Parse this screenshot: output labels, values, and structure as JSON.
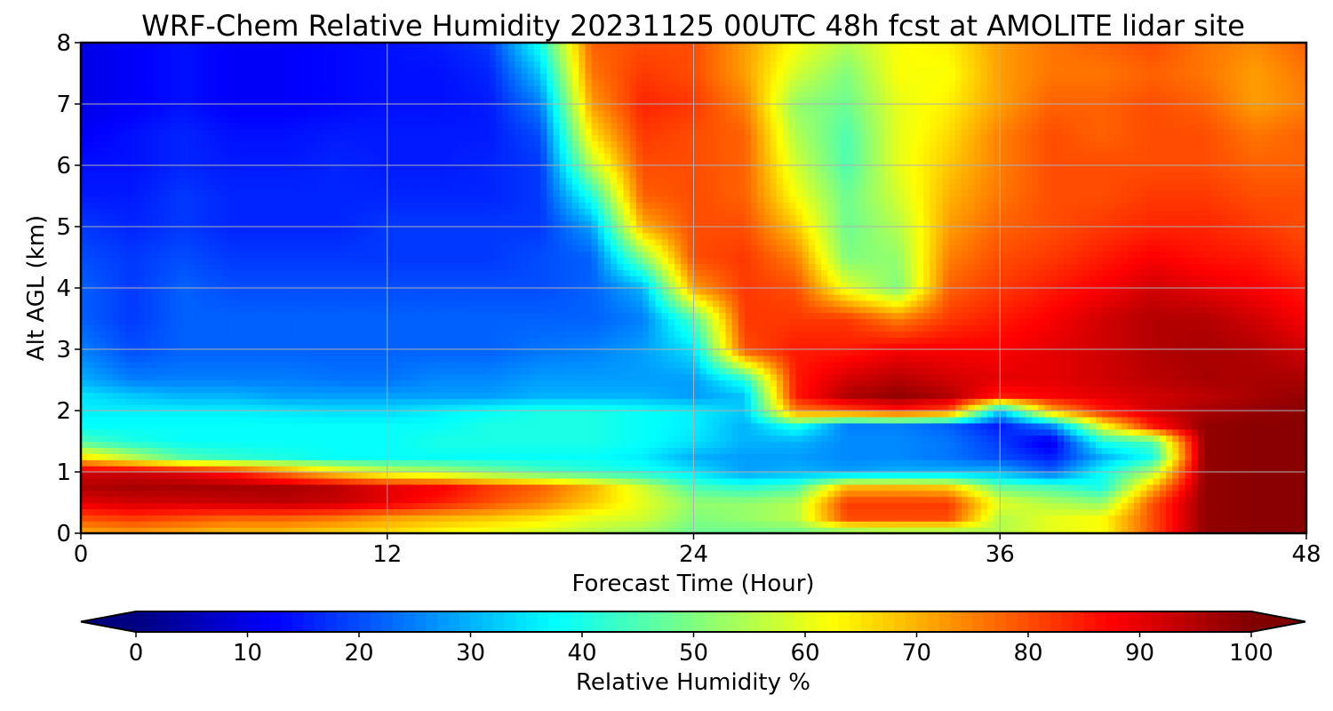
{
  "chart_data": {
    "type": "heatmap",
    "title": "WRF-Chem Relative Humidity 20231125 00UTC 48h fcst at AMOLITE lidar site",
    "xlabel": "Forecast Time (Hour)",
    "ylabel": "Alt AGL (km)",
    "xlim": [
      0,
      48
    ],
    "ylim": [
      0,
      8
    ],
    "x_ticks": [
      0,
      12,
      24,
      36,
      48
    ],
    "y_ticks": [
      0,
      1,
      2,
      3,
      4,
      5,
      6,
      7,
      8
    ],
    "grid": true,
    "x": [
      0,
      2,
      4,
      6,
      8,
      10,
      12,
      14,
      16,
      18,
      20,
      22,
      24,
      26,
      28,
      30,
      32,
      34,
      36,
      38,
      40,
      42,
      44,
      46,
      48
    ],
    "y": [
      0,
      0.25,
      0.5,
      0.75,
      1,
      1.25,
      1.5,
      1.75,
      2,
      2.25,
      2.5,
      3,
      3.5,
      4,
      4.5,
      5,
      5.5,
      6,
      6.5,
      7,
      7.5,
      8
    ],
    "z": [
      [
        70,
        72,
        70,
        68,
        68,
        66,
        65,
        62,
        60,
        58,
        55,
        52,
        48,
        48,
        48,
        48,
        50,
        50,
        55,
        60,
        62,
        80,
        98,
        99,
        99
      ],
      [
        80,
        82,
        80,
        78,
        78,
        76,
        72,
        70,
        68,
        65,
        60,
        58,
        50,
        52,
        55,
        80,
        80,
        80,
        55,
        60,
        62,
        80,
        98,
        99,
        99
      ],
      [
        90,
        92,
        92,
        93,
        94,
        93,
        90,
        85,
        80,
        75,
        68,
        60,
        52,
        52,
        55,
        82,
        82,
        82,
        60,
        55,
        52,
        80,
        98,
        99,
        99
      ],
      [
        95,
        96,
        96,
        96,
        96,
        94,
        90,
        88,
        82,
        78,
        70,
        58,
        45,
        42,
        45,
        70,
        70,
        68,
        48,
        45,
        40,
        70,
        98,
        99,
        99
      ],
      [
        92,
        92,
        90,
        85,
        75,
        65,
        58,
        55,
        50,
        45,
        42,
        40,
        35,
        28,
        30,
        28,
        30,
        30,
        30,
        22,
        38,
        55,
        98,
        99,
        99
      ],
      [
        65,
        55,
        45,
        42,
        40,
        38,
        38,
        38,
        38,
        38,
        38,
        36,
        30,
        28,
        28,
        26,
        26,
        24,
        20,
        15,
        30,
        40,
        98,
        99,
        99
      ],
      [
        45,
        40,
        38,
        38,
        38,
        38,
        38,
        40,
        40,
        40,
        40,
        38,
        35,
        30,
        30,
        26,
        26,
        24,
        18,
        10,
        40,
        45,
        98,
        99,
        99
      ],
      [
        38,
        38,
        38,
        38,
        38,
        38,
        38,
        38,
        40,
        40,
        40,
        38,
        36,
        30,
        40,
        25,
        25,
        22,
        15,
        25,
        60,
        85,
        98,
        99,
        99
      ],
      [
        36,
        36,
        36,
        36,
        35,
        34,
        34,
        36,
        38,
        40,
        40,
        38,
        36,
        32,
        75,
        80,
        85,
        80,
        32,
        70,
        85,
        92,
        96,
        98,
        99
      ],
      [
        35,
        32,
        30,
        30,
        28,
        28,
        28,
        28,
        28,
        30,
        30,
        30,
        28,
        32,
        85,
        95,
        98,
        95,
        85,
        88,
        90,
        92,
        94,
        96,
        98
      ],
      [
        30,
        25,
        25,
        25,
        25,
        24,
        24,
        26,
        26,
        28,
        28,
        28,
        28,
        40,
        85,
        92,
        95,
        92,
        90,
        90,
        92,
        94,
        96,
        96,
        96
      ],
      [
        25,
        20,
        22,
        22,
        22,
        22,
        22,
        22,
        22,
        24,
        25,
        28,
        35,
        80,
        85,
        85,
        88,
        88,
        88,
        90,
        92,
        95,
        96,
        95,
        92
      ],
      [
        22,
        18,
        22,
        22,
        22,
        22,
        22,
        22,
        22,
        22,
        22,
        25,
        45,
        82,
        82,
        82,
        75,
        82,
        85,
        88,
        92,
        95,
        95,
        92,
        88
      ],
      [
        22,
        18,
        22,
        20,
        20,
        20,
        20,
        20,
        20,
        20,
        22,
        30,
        72,
        82,
        80,
        60,
        50,
        78,
        82,
        85,
        88,
        92,
        90,
        88,
        85
      ],
      [
        20,
        18,
        20,
        18,
        18,
        18,
        18,
        18,
        18,
        20,
        22,
        50,
        80,
        82,
        75,
        50,
        52,
        75,
        80,
        82,
        85,
        88,
        86,
        85,
        82
      ],
      [
        18,
        16,
        18,
        16,
        16,
        16,
        18,
        18,
        18,
        18,
        28,
        70,
        80,
        80,
        68,
        48,
        55,
        72,
        78,
        80,
        82,
        84,
        84,
        82,
        80
      ],
      [
        15,
        15,
        18,
        16,
        16,
        16,
        16,
        16,
        16,
        18,
        40,
        78,
        80,
        78,
        62,
        48,
        58,
        70,
        76,
        80,
        80,
        82,
        82,
        80,
        80
      ],
      [
        14,
        14,
        16,
        15,
        15,
        16,
        15,
        15,
        16,
        18,
        55,
        80,
        80,
        78,
        58,
        45,
        60,
        68,
        75,
        80,
        80,
        80,
        80,
        78,
        78
      ],
      [
        12,
        14,
        16,
        14,
        14,
        15,
        15,
        15,
        15,
        20,
        65,
        82,
        80,
        78,
        55,
        45,
        60,
        66,
        75,
        80,
        78,
        80,
        80,
        76,
        78
      ],
      [
        10,
        12,
        14,
        12,
        12,
        13,
        14,
        14,
        15,
        25,
        72,
        84,
        82,
        75,
        52,
        48,
        60,
        64,
        72,
        78,
        78,
        80,
        78,
        72,
        75
      ],
      [
        10,
        12,
        14,
        12,
        12,
        13,
        14,
        14,
        16,
        32,
        76,
        82,
        80,
        72,
        58,
        50,
        62,
        62,
        72,
        76,
        76,
        78,
        76,
        72,
        76
      ],
      [
        10,
        12,
        14,
        12,
        12,
        13,
        14,
        15,
        18,
        40,
        78,
        80,
        80,
        72,
        62,
        55,
        62,
        64,
        72,
        76,
        78,
        80,
        76,
        74,
        78
      ]
    ],
    "colorbar": {
      "label": "Relative Humidity %",
      "ticks": [
        0,
        10,
        20,
        30,
        40,
        50,
        60,
        70,
        80,
        90,
        100
      ],
      "min": 0,
      "max": 100,
      "extend": "both",
      "colormap": "jet"
    }
  }
}
